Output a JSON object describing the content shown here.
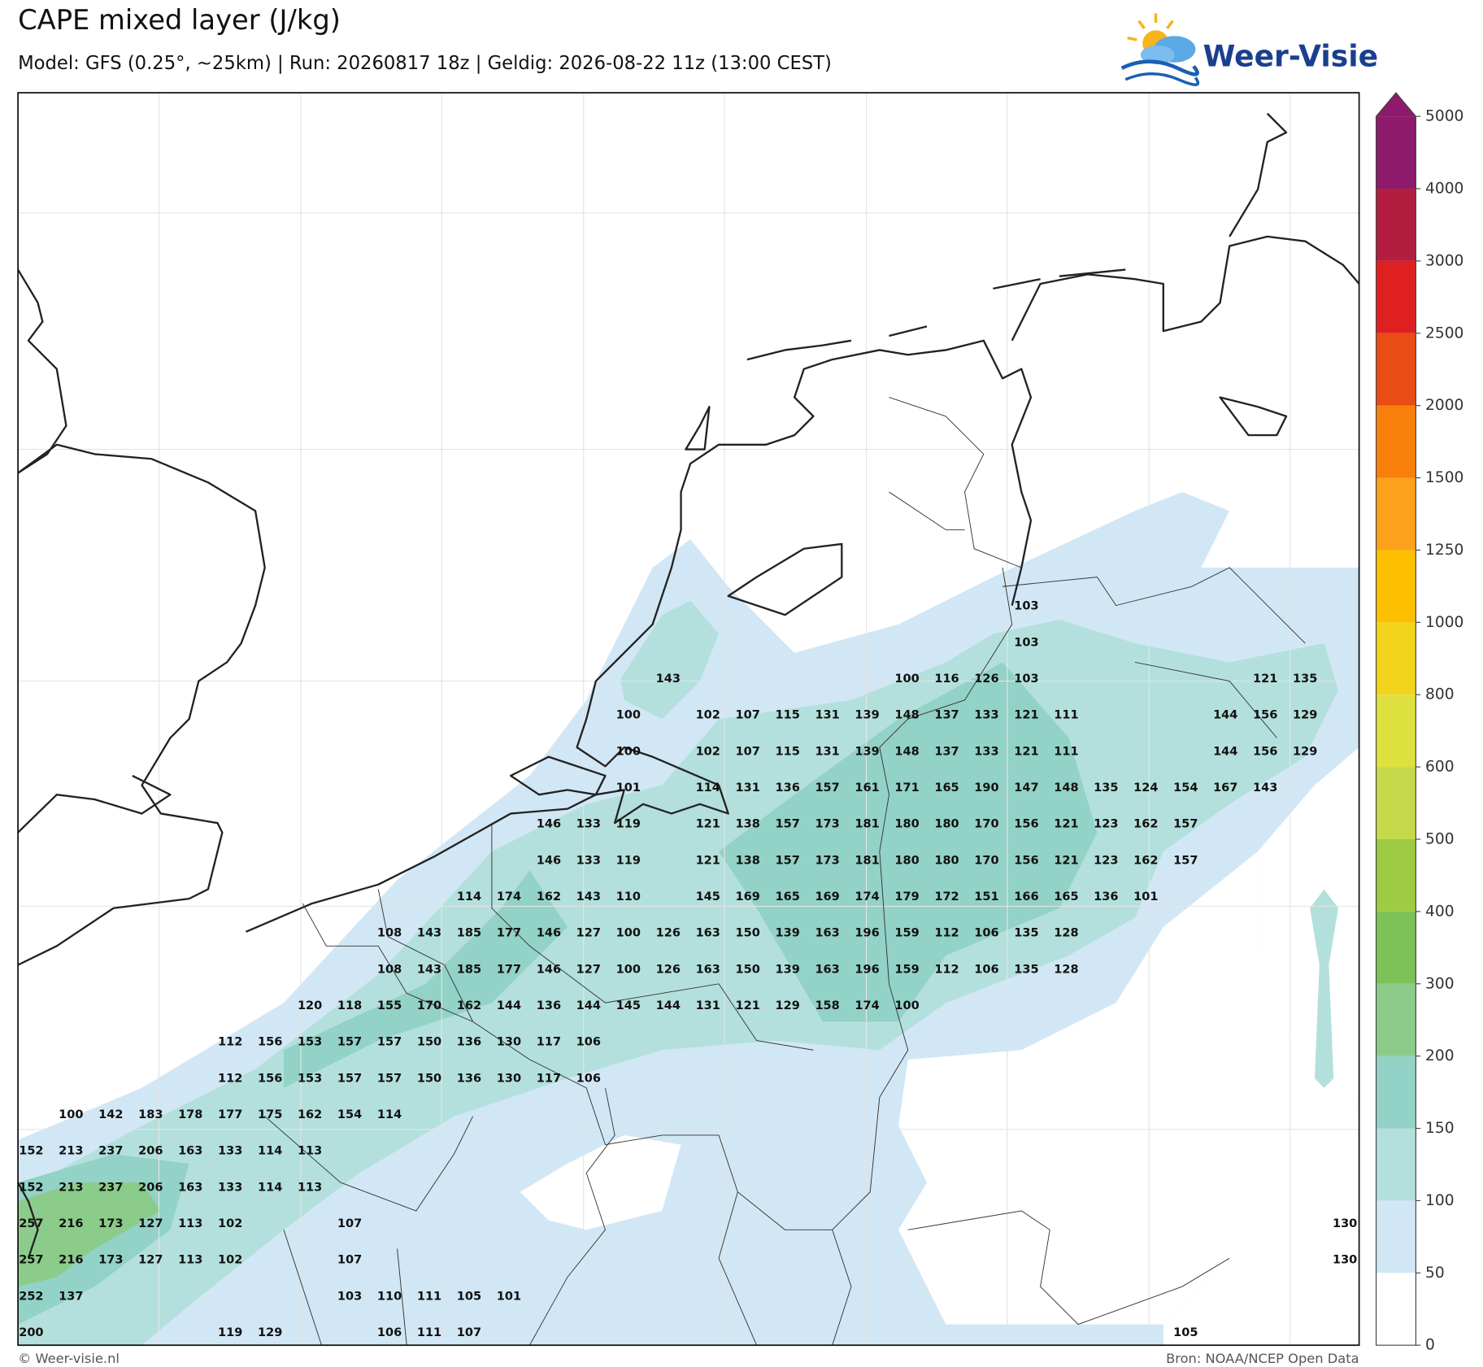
{
  "header": {
    "title": "CAPE mixed layer (J/kg)",
    "subtitle": "Model: GFS (0.25°, ~25km)  |  Run: 20260817 18z  |  Geldig: 2026-08-22 11z (13:00 CEST)"
  },
  "logo": {
    "text": "Weer-Visie"
  },
  "map": {
    "rows": [
      [
        null,
        null,
        null,
        null,
        null,
        null,
        null,
        null,
        null,
        null,
        null,
        null,
        null,
        null,
        null,
        null,
        null,
        null,
        null,
        null,
        null,
        null,
        null,
        null,
        null,
        103,
        null,
        null,
        null,
        null,
        null,
        null,
        null,
        null
      ],
      [
        null,
        null,
        null,
        null,
        null,
        null,
        null,
        null,
        null,
        null,
        null,
        null,
        null,
        null,
        null,
        null,
        null,
        null,
        null,
        null,
        null,
        null,
        null,
        null,
        null,
        103,
        null,
        null,
        null,
        null,
        null,
        null,
        null,
        null
      ],
      [
        null,
        null,
        null,
        null,
        null,
        null,
        null,
        null,
        null,
        null,
        null,
        null,
        null,
        null,
        null,
        null,
        143,
        null,
        null,
        null,
        null,
        null,
        100,
        116,
        126,
        103,
        null,
        null,
        null,
        null,
        null,
        121,
        135,
        null
      ],
      [
        null,
        null,
        null,
        null,
        null,
        null,
        null,
        null,
        null,
        null,
        null,
        null,
        null,
        null,
        null,
        100,
        null,
        102,
        107,
        115,
        131,
        139,
        148,
        137,
        133,
        121,
        111,
        null,
        null,
        null,
        144,
        156,
        129,
        null
      ],
      [
        null,
        null,
        null,
        null,
        null,
        null,
        null,
        null,
        null,
        null,
        null,
        null,
        null,
        null,
        null,
        100,
        null,
        102,
        107,
        115,
        131,
        139,
        148,
        137,
        133,
        121,
        111,
        null,
        null,
        null,
        144,
        156,
        129,
        null
      ],
      [
        null,
        null,
        null,
        null,
        null,
        null,
        null,
        null,
        null,
        null,
        null,
        null,
        null,
        null,
        null,
        101,
        null,
        114,
        131,
        136,
        157,
        161,
        171,
        165,
        190,
        147,
        148,
        135,
        124,
        154,
        167,
        143,
        null,
        null
      ],
      [
        null,
        null,
        null,
        null,
        null,
        null,
        null,
        null,
        null,
        null,
        null,
        null,
        null,
        146,
        133,
        119,
        null,
        121,
        138,
        157,
        173,
        181,
        180,
        180,
        170,
        156,
        121,
        123,
        162,
        157,
        null,
        null,
        null,
        null
      ],
      [
        null,
        null,
        null,
        null,
        null,
        null,
        null,
        null,
        null,
        null,
        null,
        null,
        null,
        146,
        133,
        119,
        null,
        121,
        138,
        157,
        173,
        181,
        180,
        180,
        170,
        156,
        121,
        123,
        162,
        157,
        null,
        null,
        null,
        null
      ],
      [
        null,
        null,
        null,
        null,
        null,
        null,
        null,
        null,
        null,
        null,
        null,
        114,
        174,
        162,
        143,
        110,
        null,
        145,
        169,
        165,
        169,
        174,
        179,
        172,
        151,
        166,
        165,
        136,
        101,
        null,
        null,
        null,
        null,
        null
      ],
      [
        null,
        null,
        null,
        null,
        null,
        null,
        null,
        null,
        null,
        108,
        143,
        185,
        177,
        146,
        127,
        100,
        126,
        163,
        150,
        139,
        163,
        196,
        159,
        112,
        106,
        135,
        128,
        null,
        null,
        null,
        null,
        null,
        null,
        null
      ],
      [
        null,
        null,
        null,
        null,
        null,
        null,
        null,
        null,
        null,
        108,
        143,
        185,
        177,
        146,
        127,
        100,
        126,
        163,
        150,
        139,
        163,
        196,
        159,
        112,
        106,
        135,
        128,
        null,
        null,
        null,
        null,
        null,
        null,
        null
      ],
      [
        null,
        null,
        null,
        null,
        null,
        null,
        null,
        120,
        118,
        155,
        170,
        162,
        144,
        136,
        144,
        145,
        144,
        131,
        121,
        129,
        158,
        174,
        100,
        null,
        null,
        null,
        null,
        null,
        null,
        null,
        null,
        null,
        null,
        null
      ],
      [
        null,
        null,
        null,
        null,
        null,
        112,
        156,
        153,
        157,
        157,
        150,
        136,
        130,
        117,
        106,
        null,
        null,
        null,
        null,
        null,
        null,
        null,
        null,
        null,
        null,
        null,
        null,
        null,
        null,
        null,
        null,
        null,
        null,
        null
      ],
      [
        null,
        null,
        null,
        null,
        null,
        112,
        156,
        153,
        157,
        157,
        150,
        136,
        130,
        117,
        106,
        null,
        null,
        null,
        null,
        null,
        null,
        null,
        null,
        null,
        null,
        null,
        null,
        null,
        null,
        null,
        null,
        null,
        null,
        null
      ],
      [
        null,
        100,
        142,
        183,
        178,
        177,
        175,
        162,
        154,
        114,
        null,
        null,
        null,
        null,
        null,
        null,
        null,
        null,
        null,
        null,
        null,
        null,
        null,
        null,
        null,
        null,
        null,
        null,
        null,
        null,
        null,
        null,
        null,
        null
      ],
      [
        152,
        213,
        237,
        206,
        163,
        133,
        114,
        113,
        null,
        null,
        null,
        null,
        null,
        null,
        null,
        null,
        null,
        null,
        null,
        null,
        null,
        null,
        null,
        null,
        null,
        null,
        null,
        null,
        null,
        null,
        null,
        null,
        null,
        null
      ],
      [
        152,
        213,
        237,
        206,
        163,
        133,
        114,
        113,
        null,
        null,
        null,
        null,
        null,
        null,
        null,
        null,
        null,
        null,
        null,
        null,
        null,
        null,
        null,
        null,
        null,
        null,
        null,
        null,
        null,
        null,
        null,
        null,
        null,
        null
      ],
      [
        257,
        216,
        173,
        127,
        113,
        102,
        null,
        null,
        107,
        null,
        null,
        null,
        null,
        null,
        null,
        null,
        null,
        null,
        null,
        null,
        null,
        null,
        null,
        null,
        null,
        null,
        null,
        null,
        null,
        null,
        null,
        null,
        null,
        130
      ],
      [
        257,
        216,
        173,
        127,
        113,
        102,
        null,
        null,
        107,
        null,
        null,
        null,
        null,
        null,
        null,
        null,
        null,
        null,
        null,
        null,
        null,
        null,
        null,
        null,
        null,
        null,
        null,
        null,
        null,
        null,
        null,
        null,
        null,
        130
      ],
      [
        252,
        137,
        null,
        null,
        null,
        null,
        null,
        null,
        103,
        110,
        111,
        105,
        101,
        null,
        null,
        null,
        null,
        null,
        null,
        null,
        null,
        null,
        null,
        null,
        null,
        null,
        null,
        null,
        null,
        null,
        null,
        null,
        null,
        null
      ],
      [
        200,
        null,
        null,
        null,
        null,
        119,
        129,
        null,
        null,
        106,
        111,
        107,
        null,
        null,
        null,
        null,
        null,
        null,
        null,
        null,
        null,
        null,
        null,
        null,
        null,
        null,
        null,
        null,
        null,
        105,
        null,
        null,
        null,
        null
      ]
    ]
  },
  "colorbar": {
    "ticks": [
      0,
      50,
      100,
      150,
      200,
      300,
      400,
      500,
      600,
      800,
      1000,
      1250,
      1500,
      2000,
      2500,
      3000,
      4000,
      5000
    ],
    "colors": [
      "#ffffff",
      "#d2e7f5",
      "#b3e0dc",
      "#93d2c6",
      "#8ccc8a",
      "#7dc257",
      "#9dcb44",
      "#c5d94b",
      "#dde03e",
      "#f3d41c",
      "#fcc000",
      "#fca21c",
      "#f97f0c",
      "#e94c14",
      "#df2020",
      "#b31e3e",
      "#8d1a6b"
    ]
  },
  "footer": {
    "left": "© Weer-visie.nl",
    "right": "Bron: NOAA/NCEP Open Data"
  }
}
